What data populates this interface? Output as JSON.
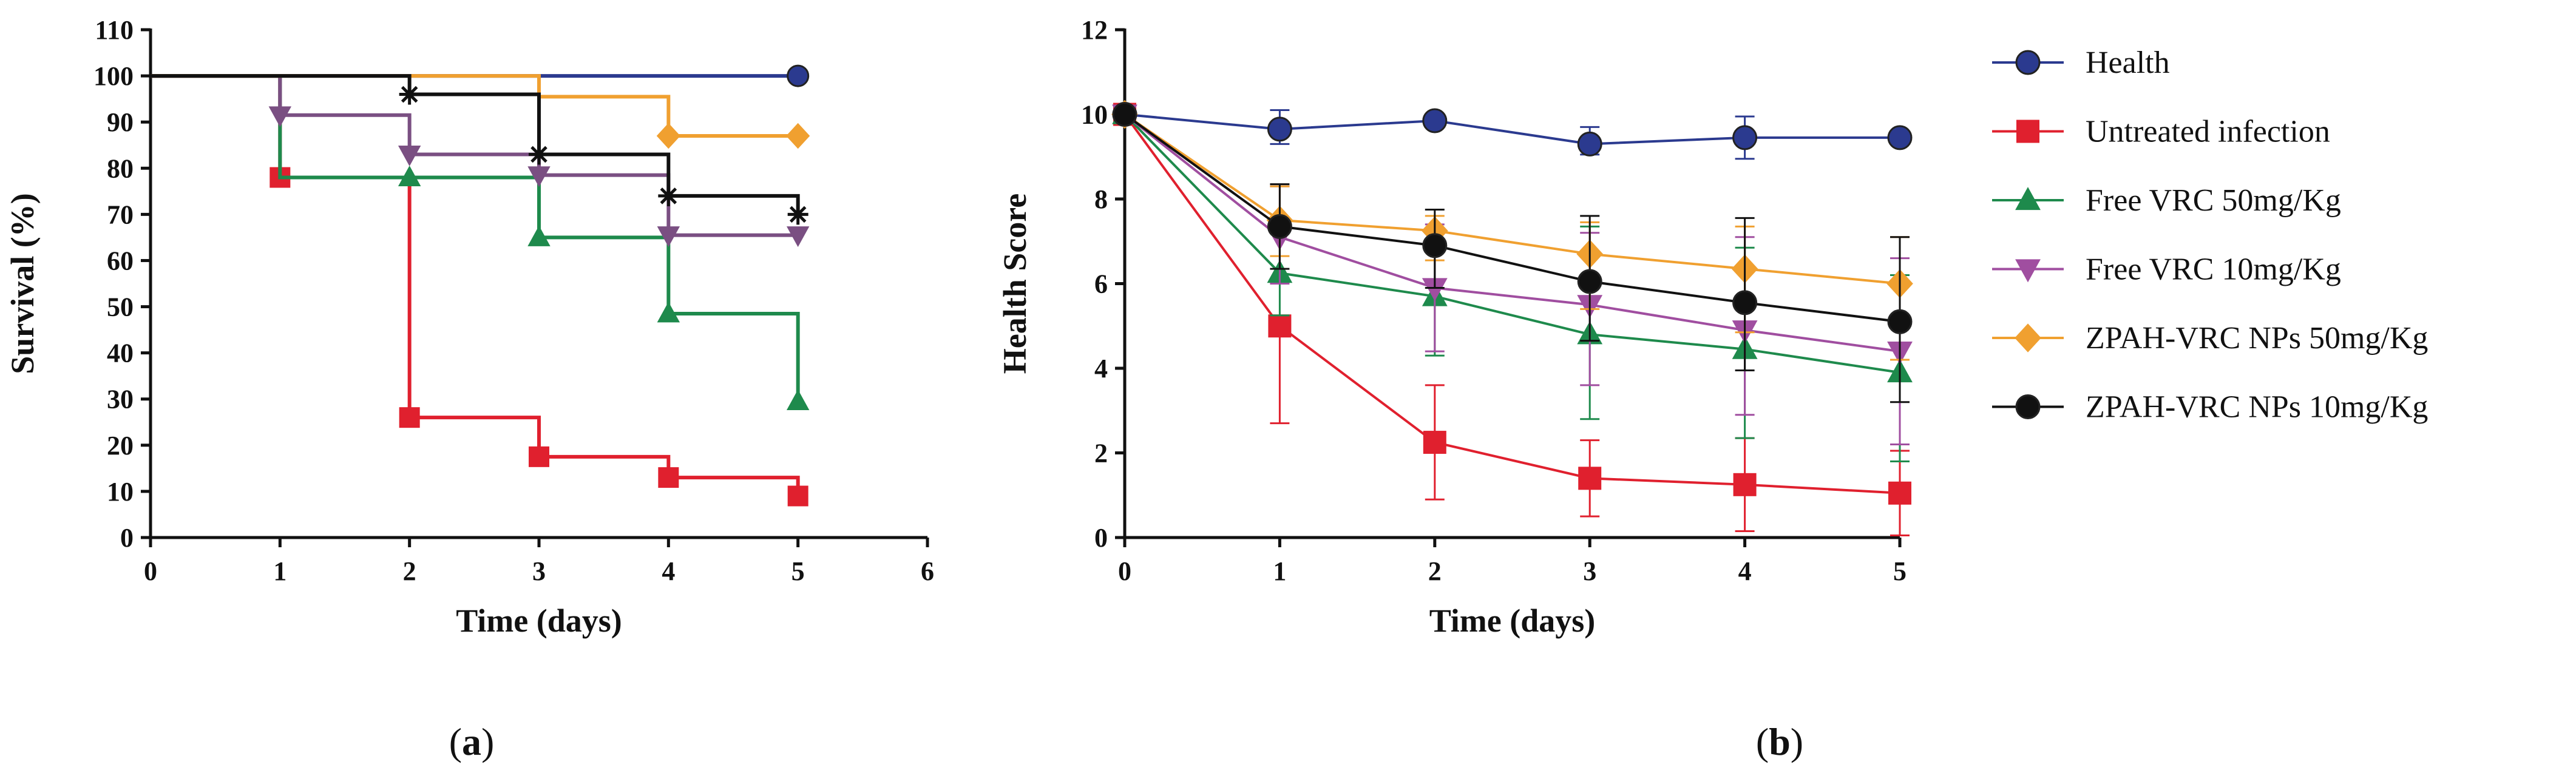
{
  "chart_data": [
    {
      "type": "step",
      "panel_label": "a",
      "title": "",
      "xlabel": "Time (days)",
      "ylabel": "Survival (%)",
      "xlim": [
        0,
        6
      ],
      "ylim": [
        0,
        110
      ],
      "xticks": [
        0,
        1,
        2,
        3,
        4,
        5,
        6
      ],
      "yticks": [
        0,
        10,
        20,
        30,
        40,
        50,
        60,
        70,
        80,
        90,
        100,
        110
      ],
      "grid": false,
      "series": [
        {
          "name": "Health",
          "color": "#2b3a8f",
          "marker": "circle",
          "x": [
            0,
            5
          ],
          "y": [
            100,
            100
          ],
          "marker_points": [
            [
              5,
              100
            ]
          ]
        },
        {
          "name": "Untreated infection",
          "color": "#e0202e",
          "marker": "square",
          "x": [
            0,
            1,
            2,
            3,
            4,
            5
          ],
          "y": [
            100,
            78,
            26,
            17.5,
            13,
            9
          ],
          "marker_points": [
            [
              1,
              78
            ],
            [
              2,
              26
            ],
            [
              3,
              17.5
            ],
            [
              4,
              13
            ],
            [
              5,
              9
            ]
          ]
        },
        {
          "name": "Free VRC 50mg/Kg",
          "color": "#1e8a4c",
          "marker": "triangle-up",
          "x": [
            0,
            1,
            2,
            3,
            4,
            5
          ],
          "y": [
            100,
            78,
            78,
            65,
            48.5,
            29.5
          ],
          "marker_points": [
            [
              2,
              78
            ],
            [
              3,
              65
            ],
            [
              4,
              48.5
            ],
            [
              5,
              29.5
            ]
          ]
        },
        {
          "name": "Free VRC 10mg/Kg",
          "color": "#7a4f82",
          "marker": "triangle-down",
          "x": [
            0,
            1,
            2,
            3,
            4,
            5
          ],
          "y": [
            100,
            91.5,
            83,
            78.5,
            65.5,
            65.5
          ],
          "marker_points": [
            [
              1,
              91.5
            ],
            [
              2,
              83
            ],
            [
              3,
              78.5
            ],
            [
              4,
              65.5
            ],
            [
              5,
              65.5
            ]
          ]
        },
        {
          "name": "ZPAH-VRC NPs 50mg/Kg",
          "color": "#f0a030",
          "marker": "diamond",
          "x": [
            0,
            2,
            3,
            4,
            5
          ],
          "y": [
            100,
            100,
            95.5,
            87,
            87
          ],
          "marker_points": [
            [
              4,
              87
            ],
            [
              5,
              87
            ]
          ]
        },
        {
          "name": "ZPAH-VRC NPs 10mg/Kg",
          "color": "#111111",
          "marker": "asterisk",
          "x": [
            0,
            2,
            3,
            4,
            5
          ],
          "y": [
            100,
            96,
            83,
            74,
            70
          ],
          "marker_points": [
            [
              2,
              96
            ],
            [
              3,
              83
            ],
            [
              4,
              74
            ],
            [
              5,
              70
            ]
          ]
        }
      ]
    },
    {
      "type": "line",
      "panel_label": "b",
      "title": "",
      "xlabel": "Time (days)",
      "ylabel": "Health Score",
      "xlim": [
        0,
        5
      ],
      "ylim": [
        0,
        12
      ],
      "xticks": [
        0,
        1,
        2,
        3,
        4,
        5
      ],
      "yticks": [
        0,
        2,
        4,
        6,
        8,
        10,
        12
      ],
      "grid": false,
      "legend": "right",
      "x": [
        0,
        1,
        2,
        3,
        4,
        5
      ],
      "series": [
        {
          "name": "Health",
          "color": "#2b3a8f",
          "marker": "circle",
          "values": [
            10,
            9.65,
            9.85,
            9.3,
            9.45,
            9.45
          ],
          "err_up": [
            0,
            0.45,
            0,
            0.4,
            0.5,
            0
          ],
          "err_down": [
            0,
            0.35,
            0,
            0.25,
            0.5,
            0
          ]
        },
        {
          "name": "Untreated infection",
          "color": "#e0202e",
          "marker": "square",
          "values": [
            10,
            5.0,
            2.25,
            1.4,
            1.25,
            1.05
          ],
          "err_up": [
            0,
            0,
            1.35,
            0.9,
            1.1,
            1.0
          ],
          "err_down": [
            0,
            2.3,
            1.35,
            0.9,
            1.1,
            1.0
          ]
        },
        {
          "name": "Free VRC 50mg/Kg",
          "color": "#1e8a4c",
          "marker": "triangle-up",
          "values": [
            10,
            6.25,
            5.7,
            4.8,
            4.45,
            3.9
          ],
          "err_up": [
            0,
            1.0,
            1.5,
            2.55,
            2.4,
            2.3
          ],
          "err_down": [
            0,
            1.0,
            1.4,
            2.0,
            2.1,
            2.1
          ]
        },
        {
          "name": "Free VRC 10mg/Kg",
          "color": "#a04ea0",
          "marker": "triangle-down",
          "values": [
            10,
            7.1,
            5.9,
            5.5,
            4.9,
            4.4
          ],
          "err_up": [
            0,
            1.2,
            1.5,
            1.7,
            2.2,
            2.2
          ],
          "err_down": [
            0,
            1.1,
            1.5,
            1.9,
            2.0,
            2.2
          ]
        },
        {
          "name": "ZPAH-VRC NPs 50mg/Kg",
          "color": "#f0a030",
          "marker": "diamond",
          "values": [
            10,
            7.5,
            7.25,
            6.7,
            6.35,
            6.0
          ],
          "err_up": [
            0,
            0.8,
            0.35,
            0.75,
            1.0,
            1.1
          ],
          "err_down": [
            0,
            0.85,
            0.7,
            1.3,
            1.5,
            1.8
          ]
        },
        {
          "name": "ZPAH-VRC NPs 10mg/Kg",
          "color": "#111111",
          "marker": "circle",
          "values": [
            10,
            7.35,
            6.9,
            6.05,
            5.55,
            5.1
          ],
          "err_up": [
            0,
            1.0,
            0.85,
            1.55,
            2.0,
            2.0
          ],
          "err_down": [
            0,
            1.0,
            1.0,
            1.4,
            1.6,
            1.9
          ]
        }
      ]
    }
  ]
}
